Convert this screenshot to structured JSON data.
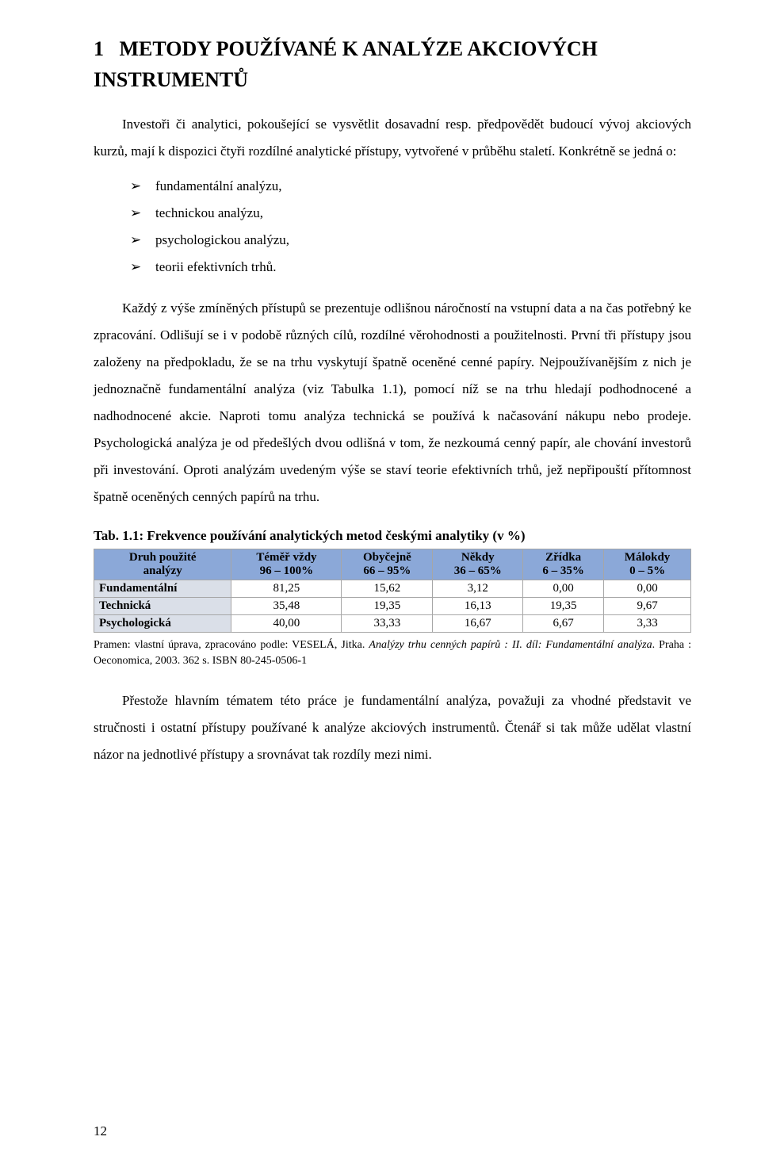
{
  "heading": {
    "number": "1",
    "text": "METODY POUŽÍVANÉ K ANALÝZE AKCIOVÝCH INSTRUMENTŮ"
  },
  "intro": "Investoři či analytici, pokoušející se vysvětlit dosavadní resp. předpovědět budoucí vývoj akciových kurzů, mají k dispozici čtyři rozdílné analytické přístupy, vytvořené v průběhu staletí. Konkrétně se jedná o:",
  "bullets": [
    "fundamentální analýzu,",
    "technickou analýzu,",
    "psychologickou analýzu,",
    "teorii efektivních trhů."
  ],
  "body": "Každý z výše zmíněných přístupů se prezentuje odlišnou náročností na vstupní data a na čas potřebný ke zpracování. Odlišují se i v podobě různých cílů, rozdílné věrohodnosti a použitelnosti. První tři přístupy jsou založeny na předpokladu, že se na trhu vyskytují špatně oceněné cenné papíry. Nejpoužívanějším z nich je jednoznačně fundamentální analýza (viz Tabulka 1.1), pomocí níž se na trhu hledají podhodnocené a nadhodnocené akcie. Naproti tomu analýza technická se používá k načasování nákupu nebo prodeje. Psychologická analýza je od předešlých dvou odlišná v tom, že nezkoumá cenný papír, ale chování investorů při investování. Oproti analýzám uvedeným výše se staví teorie efektivních trhů, jež nepřipouští přítomnost špatně oceněných cenných papírů na trhu.",
  "table": {
    "caption": "Tab. 1.1: Frekvence používání analytických metod českými analytiky (v %)",
    "header_bg": "#8ba8d8",
    "rowheader_bg": "#dadfe8",
    "border_color": "#a6a6a6",
    "columns": [
      {
        "line1": "Druh použité",
        "line2": "analýzy"
      },
      {
        "line1": "Téměř vždy",
        "line2": "96 – 100%"
      },
      {
        "line1": "Obyčejně",
        "line2": "66 – 95%"
      },
      {
        "line1": "Někdy",
        "line2": "36 – 65%"
      },
      {
        "line1": "Zřídka",
        "line2": "6 – 35%"
      },
      {
        "line1": "Málokdy",
        "line2": "0 – 5%"
      }
    ],
    "rows": [
      {
        "label": "Fundamentální",
        "values": [
          "81,25",
          "15,62",
          "3,12",
          "0,00",
          "0,00"
        ]
      },
      {
        "label": "Technická",
        "values": [
          "35,48",
          "19,35",
          "16,13",
          "19,35",
          "9,67"
        ]
      },
      {
        "label": "Psychologická",
        "values": [
          "40,00",
          "33,33",
          "16,67",
          "6,67",
          "3,33"
        ]
      }
    ]
  },
  "source": {
    "prefix": "Pramen: vlastní úprava, zpracováno podle: VESELÁ, Jitka. ",
    "italic": "Analýzy trhu cenných papírů : II. díl: Fundamentální analýza",
    "suffix": ". Praha : Oeconomica, 2003. 362 s. ISBN 80-245-0506-1"
  },
  "closing": "Přestože hlavním tématem této práce je fundamentální analýza, považuji za vhodné představit ve stručnosti i ostatní přístupy používané k analýze akciových instrumentů. Čtenář si tak může udělat vlastní názor na jednotlivé přístupy a srovnávat tak rozdíly mezi nimi.",
  "page_number": "12"
}
